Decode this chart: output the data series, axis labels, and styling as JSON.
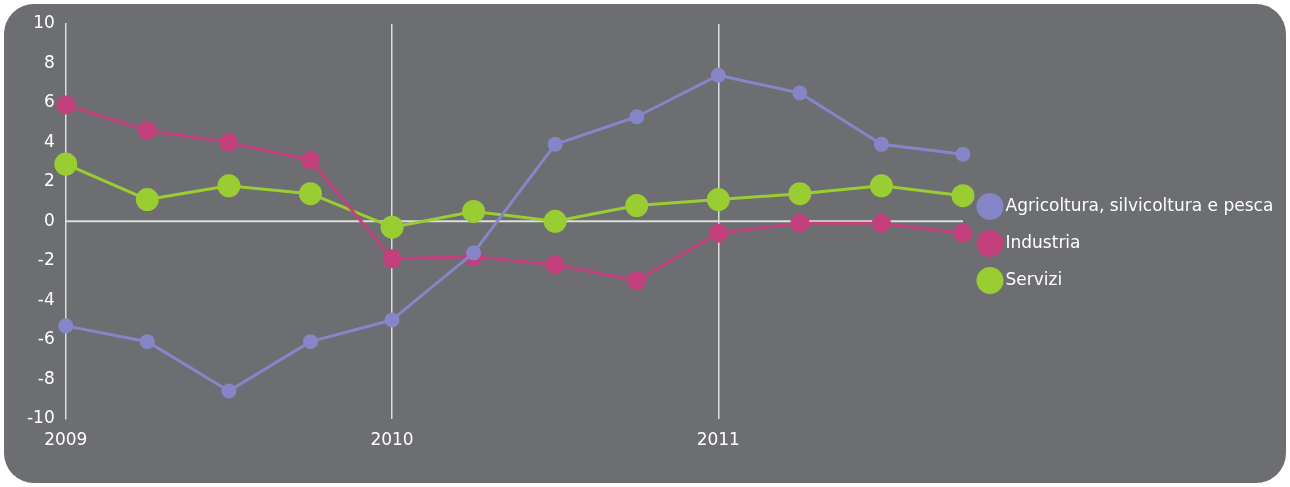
{
  "chart_data": {
    "type": "line",
    "categories": [
      "2009",
      null,
      null,
      null,
      "2010",
      null,
      null,
      null,
      "2011",
      null,
      null,
      null
    ],
    "ylim": [
      -10,
      10
    ],
    "yticks": [
      -10,
      -8,
      -6,
      -4,
      -2,
      0,
      2,
      4,
      6,
      8,
      10
    ],
    "grid": "x",
    "ref_lines": [
      {
        "axis": "y",
        "value": 0,
        "color": "#dddddd"
      }
    ],
    "legend": "right",
    "marker": "circle",
    "line_style": "solid",
    "series": [
      {
        "name": "Agricoltura, silvicoltura e pesca",
        "color": "#8585c8",
        "values": [
          -5.3,
          -6.1,
          -8.6,
          -6.1,
          -5.0,
          -1.6,
          3.9,
          5.3,
          7.4,
          6.5,
          3.9,
          3.4
        ]
      },
      {
        "name": "Industria",
        "color": "#c2407c",
        "values": [
          5.9,
          4.6,
          4.0,
          3.1,
          -1.9,
          -1.8,
          -2.2,
          -3.0,
          -0.6,
          -0.1,
          -0.1,
          -0.6
        ]
      },
      {
        "name": "Servizi",
        "color": "#9acd32",
        "values": [
          2.9,
          1.1,
          1.8,
          1.4,
          -0.3,
          0.5,
          0.0,
          0.8,
          1.1,
          1.4,
          1.8,
          1.3
        ]
      }
    ]
  }
}
